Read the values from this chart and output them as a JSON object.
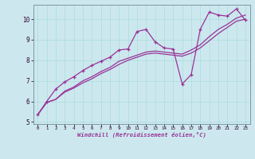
{
  "xlabel": "Windchill (Refroidissement éolien,°C)",
  "bg_color": "#cce8ee",
  "line_color": "#993399",
  "grid_color": "#aadddd",
  "xlim": [
    -0.5,
    23.5
  ],
  "ylim": [
    4.9,
    10.7
  ],
  "yticks": [
    5,
    6,
    7,
    8,
    9,
    10
  ],
  "xticks": [
    0,
    1,
    2,
    3,
    4,
    5,
    6,
    7,
    8,
    9,
    10,
    11,
    12,
    13,
    14,
    15,
    16,
    17,
    18,
    19,
    20,
    21,
    22,
    23
  ],
  "line1_x": [
    0,
    1,
    2,
    3,
    4,
    5,
    6,
    7,
    8,
    9,
    10,
    11,
    12,
    13,
    14,
    15,
    16,
    17,
    18,
    19,
    20,
    21,
    22,
    23
  ],
  "line1_y": [
    5.35,
    6.0,
    6.6,
    6.95,
    7.2,
    7.5,
    7.75,
    7.95,
    8.15,
    8.5,
    8.55,
    9.4,
    9.5,
    8.9,
    8.6,
    8.55,
    6.85,
    7.3,
    9.5,
    10.35,
    10.2,
    10.15,
    10.5,
    9.95
  ],
  "line2_x": [
    0,
    1,
    2,
    3,
    4,
    5,
    6,
    7,
    8,
    9,
    10,
    11,
    12,
    13,
    14,
    15,
    16,
    17,
    18,
    19,
    20,
    21,
    22,
    23
  ],
  "line2_y": [
    5.35,
    5.95,
    6.1,
    6.45,
    6.65,
    6.9,
    7.1,
    7.35,
    7.55,
    7.8,
    8.0,
    8.15,
    8.3,
    8.35,
    8.3,
    8.25,
    8.2,
    8.35,
    8.6,
    8.95,
    9.3,
    9.6,
    9.9,
    10.0
  ],
  "line3_x": [
    0,
    1,
    2,
    3,
    4,
    5,
    6,
    7,
    8,
    9,
    10,
    11,
    12,
    13,
    14,
    15,
    16,
    17,
    18,
    19,
    20,
    21,
    22,
    23
  ],
  "line3_y": [
    5.35,
    5.95,
    6.1,
    6.5,
    6.7,
    7.0,
    7.2,
    7.45,
    7.65,
    7.95,
    8.1,
    8.25,
    8.4,
    8.45,
    8.4,
    8.35,
    8.3,
    8.5,
    8.75,
    9.15,
    9.5,
    9.75,
    10.05,
    10.2
  ]
}
